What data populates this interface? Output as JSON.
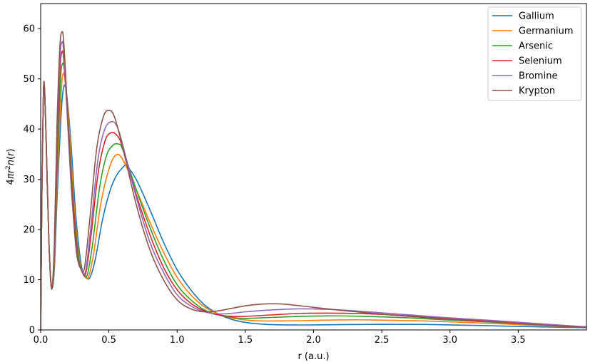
{
  "chart_data": {
    "type": "line",
    "title": "",
    "xlabel": "r (a.u.)",
    "ylabel_parts": [
      "4",
      "π",
      "r",
      "2",
      "n",
      "(",
      "r",
      ")"
    ],
    "xlim": [
      0,
      4.0
    ],
    "ylim": [
      0,
      65
    ],
    "xticks": [
      0.0,
      0.5,
      1.0,
      1.5,
      2.0,
      2.5,
      3.0,
      3.5
    ],
    "xtick_labels": [
      "0.0",
      "0.5",
      "1.0",
      "1.5",
      "2.0",
      "2.5",
      "3.0",
      "3.5"
    ],
    "yticks": [
      0,
      10,
      20,
      30,
      40,
      50,
      60
    ],
    "ytick_labels": [
      "0",
      "10",
      "20",
      "30",
      "40",
      "50",
      "60"
    ],
    "grid": false,
    "legend_position": "top-right",
    "series": [
      {
        "name": "Gallium",
        "color": "#1f77b4",
        "x": [
          0,
          0.01,
          0.02,
          0.028,
          0.04,
          0.06,
          0.08,
          0.1,
          0.12,
          0.15,
          0.17,
          0.19,
          0.22,
          0.26,
          0.3,
          0.33,
          0.36,
          0.4,
          0.45,
          0.5,
          0.55,
          0.6,
          0.63,
          0.7,
          0.8,
          0.9,
          1.0,
          1.1,
          1.2,
          1.3,
          1.4,
          1.5,
          1.6,
          1.7,
          1.8,
          2.0,
          2.2,
          2.4,
          2.6,
          2.8,
          3.0,
          3.2,
          3.5,
          4.0
        ],
        "y": [
          0,
          30,
          47,
          48,
          38,
          18,
          8.6,
          12,
          26,
          43,
          48.5,
          47,
          38,
          22,
          12.5,
          10.6,
          10.4,
          14,
          21.5,
          27,
          30.5,
          32.3,
          32.6,
          30,
          24,
          17.5,
          12,
          8,
          5,
          3.2,
          2.1,
          1.5,
          1.2,
          1.05,
          1.0,
          1.0,
          1.05,
          1.1,
          1.1,
          1.1,
          1.0,
          0.9,
          0.7,
          0.45
        ]
      },
      {
        "name": "Germanium",
        "color": "#ff7f0e",
        "x": [
          0,
          0.01,
          0.02,
          0.028,
          0.04,
          0.06,
          0.08,
          0.1,
          0.12,
          0.15,
          0.165,
          0.18,
          0.21,
          0.25,
          0.29,
          0.32,
          0.35,
          0.39,
          0.44,
          0.5,
          0.55,
          0.6,
          0.7,
          0.8,
          0.9,
          1.0,
          1.1,
          1.2,
          1.3,
          1.4,
          1.5,
          1.6,
          1.8,
          2.0,
          2.2,
          2.4,
          2.6,
          2.8,
          3.0,
          3.3,
          3.6,
          4.0
        ],
        "y": [
          0,
          30,
          47,
          48,
          38,
          18,
          8.5,
          13,
          29,
          47,
          51,
          49.5,
          40,
          23,
          13,
          11,
          10.5,
          15.5,
          25,
          32,
          34.8,
          34,
          28,
          21.5,
          15.5,
          10.5,
          7,
          4.6,
          3.2,
          2.4,
          2.0,
          1.8,
          1.8,
          1.9,
          2.0,
          2.0,
          1.9,
          1.8,
          1.6,
          1.3,
          0.95,
          0.55
        ]
      },
      {
        "name": "Arsenic",
        "color": "#2ca02c",
        "x": [
          0,
          0.01,
          0.02,
          0.028,
          0.04,
          0.06,
          0.08,
          0.1,
          0.12,
          0.145,
          0.16,
          0.175,
          0.2,
          0.24,
          0.28,
          0.31,
          0.34,
          0.38,
          0.43,
          0.48,
          0.53,
          0.57,
          0.6,
          0.7,
          0.8,
          0.9,
          1.0,
          1.1,
          1.2,
          1.3,
          1.4,
          1.5,
          1.7,
          1.9,
          2.1,
          2.3,
          2.5,
          2.7,
          2.9,
          3.2,
          3.5,
          4.0
        ],
        "y": [
          0,
          30,
          47,
          48,
          38,
          18,
          8.4,
          14,
          32,
          49.5,
          53,
          51.5,
          42,
          25,
          14,
          11.5,
          10.8,
          17,
          28,
          34.5,
          36.8,
          37,
          36,
          28,
          20.5,
          14,
          9,
          6,
          4,
          3,
          2.5,
          2.3,
          2.5,
          2.7,
          2.8,
          2.75,
          2.6,
          2.4,
          2.1,
          1.7,
          1.25,
          0.6
        ]
      },
      {
        "name": "Selenium",
        "color": "#d62728",
        "x": [
          0,
          0.01,
          0.02,
          0.028,
          0.04,
          0.06,
          0.08,
          0.1,
          0.12,
          0.14,
          0.155,
          0.17,
          0.2,
          0.23,
          0.27,
          0.3,
          0.33,
          0.37,
          0.42,
          0.47,
          0.51,
          0.55,
          0.6,
          0.7,
          0.8,
          0.9,
          1.0,
          1.1,
          1.2,
          1.3,
          1.4,
          1.5,
          1.7,
          1.9,
          2.1,
          2.3,
          2.5,
          2.7,
          3.0,
          3.3,
          3.6,
          4.0
        ],
        "y": [
          0,
          30,
          47,
          48,
          38,
          18,
          8.3,
          15,
          35,
          51,
          55.3,
          53.5,
          41,
          28,
          15,
          12,
          11.2,
          19,
          31,
          37.5,
          39.2,
          39,
          36.5,
          27,
          19,
          12.5,
          8,
          5.3,
          3.8,
          3.0,
          2.7,
          2.7,
          3.0,
          3.3,
          3.35,
          3.3,
          3.1,
          2.8,
          2.3,
          1.8,
          1.3,
          0.6
        ]
      },
      {
        "name": "Bromine",
        "color": "#9467bd",
        "x": [
          0,
          0.01,
          0.02,
          0.028,
          0.04,
          0.06,
          0.08,
          0.1,
          0.12,
          0.14,
          0.155,
          0.17,
          0.2,
          0.23,
          0.27,
          0.3,
          0.33,
          0.37,
          0.42,
          0.47,
          0.52,
          0.56,
          0.6,
          0.7,
          0.8,
          0.9,
          1.0,
          1.1,
          1.2,
          1.3,
          1.4,
          1.5,
          1.7,
          1.9,
          2.1,
          2.3,
          2.5,
          2.7,
          3.0,
          3.3,
          3.6,
          4.0
        ],
        "y": [
          0,
          30,
          47,
          48,
          38,
          18,
          8.2,
          16,
          38,
          53.5,
          57.3,
          55,
          40,
          26,
          14.5,
          12,
          11.8,
          21,
          34,
          40,
          41.5,
          40.5,
          37,
          26.5,
          17.5,
          11.5,
          7,
          4.8,
          3.6,
          3.2,
          3.3,
          3.6,
          4.0,
          4.2,
          4.1,
          3.8,
          3.4,
          3.0,
          2.4,
          1.9,
          1.35,
          0.6
        ]
      },
      {
        "name": "Krypton",
        "color": "#8c564b",
        "x": [
          0,
          0.01,
          0.02,
          0.028,
          0.04,
          0.06,
          0.08,
          0.1,
          0.12,
          0.14,
          0.155,
          0.17,
          0.2,
          0.23,
          0.26,
          0.29,
          0.32,
          0.36,
          0.41,
          0.46,
          0.5,
          0.54,
          0.6,
          0.7,
          0.8,
          0.9,
          1.0,
          1.1,
          1.2,
          1.3,
          1.4,
          1.5,
          1.6,
          1.7,
          1.8,
          2.0,
          2.2,
          2.4,
          2.6,
          2.8,
          3.0,
          3.3,
          3.6,
          4.0
        ],
        "y": [
          0,
          30,
          47,
          48.5,
          38,
          18,
          8.1,
          17,
          41,
          56,
          59.3,
          57,
          42,
          27,
          16,
          12.5,
          12.2,
          22,
          36,
          42.5,
          43.7,
          42.5,
          36.5,
          25,
          16,
          10,
          6,
          4.2,
          3.6,
          3.8,
          4.3,
          4.8,
          5.1,
          5.2,
          5.1,
          4.5,
          3.9,
          3.4,
          2.9,
          2.5,
          2.1,
          1.6,
          1.1,
          0.5
        ]
      }
    ]
  }
}
